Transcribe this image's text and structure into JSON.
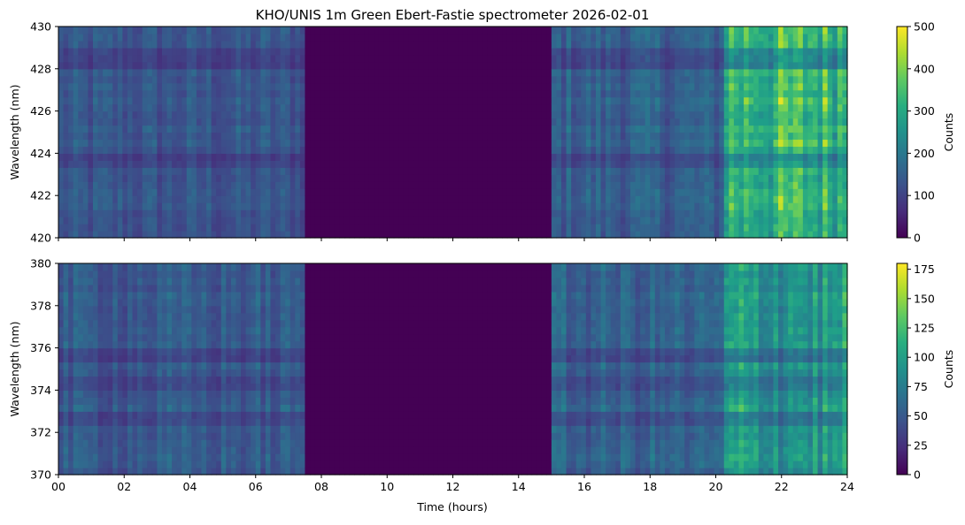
{
  "chart_data": [
    {
      "type": "heatmap",
      "title": "KHO/UNIS 1m Green Ebert-Fastie spectrometer 2026-02-01",
      "xlabel": "",
      "ylabel": "Wavelength (nm)",
      "xlim": [
        0,
        24
      ],
      "ylim": [
        420,
        430
      ],
      "xticks": [
        "00",
        "02",
        "04",
        "06",
        "08",
        "10",
        "12",
        "14",
        "16",
        "18",
        "20",
        "22",
        "24"
      ],
      "xticklabels_visible": false,
      "yticks": [
        "420",
        "422",
        "424",
        "426",
        "428",
        "430"
      ],
      "colorbar": {
        "label": "Counts",
        "min": 0,
        "max": 500,
        "ticks": [
          "0",
          "100",
          "200",
          "300",
          "400",
          "500"
        ]
      },
      "colormap": "viridis",
      "no_data_hours": [
        7.45,
        15.0
      ],
      "time_segments": [
        {
          "x": [
            0,
            7.45
          ],
          "counts": 130
        },
        {
          "x": [
            7.45,
            15.0
          ],
          "counts": 0
        },
        {
          "x": [
            15.0,
            20.2
          ],
          "counts": 150
        },
        {
          "x": [
            20.2,
            24
          ],
          "counts": 330
        }
      ],
      "spectral_features_nm": [
        {
          "wavelength": 423.6,
          "note": "dark band"
        },
        {
          "wavelength": 428.5,
          "note": "dark band"
        }
      ]
    },
    {
      "type": "heatmap",
      "title": "",
      "xlabel": "Time (hours)",
      "ylabel": "Wavelength (nm)",
      "xlim": [
        0,
        24
      ],
      "ylim": [
        370,
        380
      ],
      "xticks": [
        "00",
        "02",
        "04",
        "06",
        "08",
        "10",
        "12",
        "14",
        "16",
        "18",
        "20",
        "22",
        "24"
      ],
      "xticklabels_visible": true,
      "yticks": [
        "370",
        "372",
        "374",
        "376",
        "378",
        "380"
      ],
      "colorbar": {
        "label": "Counts",
        "min": 0,
        "max": 180,
        "ticks": [
          "0",
          "25",
          "50",
          "75",
          "100",
          "125",
          "150",
          "175"
        ]
      },
      "colormap": "viridis",
      "no_data_hours": [
        7.45,
        15.0
      ],
      "time_segments": [
        {
          "x": [
            0,
            7.45
          ],
          "counts": 50
        },
        {
          "x": [
            7.45,
            15.0
          ],
          "counts": 0
        },
        {
          "x": [
            15.0,
            20.2
          ],
          "counts": 55
        },
        {
          "x": [
            20.2,
            24
          ],
          "counts": 95
        }
      ],
      "spectral_features_nm": [
        {
          "wavelength": 372.8,
          "note": "dark band"
        },
        {
          "wavelength": 374.4,
          "note": "dark band"
        },
        {
          "wavelength": 375.7,
          "note": "dark band"
        }
      ]
    }
  ]
}
